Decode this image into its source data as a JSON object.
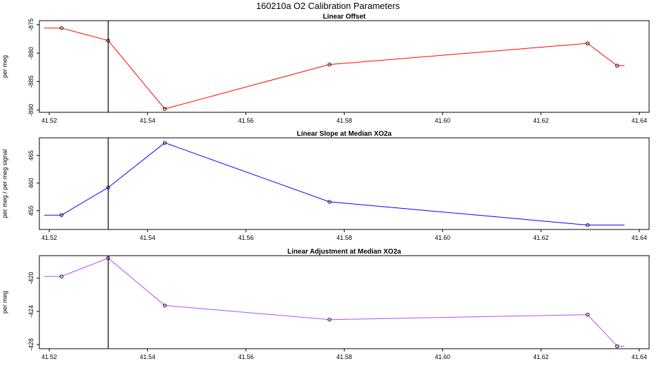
{
  "title": "160210a   O2 Calibration Parameters",
  "chart_data": [
    {
      "type": "line",
      "title": "Linear Offset",
      "ylabel": "per meg",
      "color": "#ff0000",
      "xlim": [
        41.518,
        41.642
      ],
      "ylim": [
        -890.4,
        -874.3
      ],
      "x_ticks": [
        41.52,
        41.54,
        41.56,
        41.58,
        41.6,
        41.62,
        41.64
      ],
      "x_tick_labels": [
        "41.52",
        "41.54",
        "41.56",
        "41.58",
        "41.60",
        "41.62",
        "41.64"
      ],
      "y_ticks": [
        -875,
        -880,
        -885,
        -890
      ],
      "y_tick_labels": [
        "-875",
        "-880",
        "-885",
        "-890"
      ],
      "vertical_line_x": 41.532,
      "x": [
        41.519,
        41.5225,
        41.532,
        41.5435,
        41.577,
        41.6295,
        41.6355,
        41.637
      ],
      "y": [
        -875.6,
        -875.6,
        -877.8,
        -889.8,
        -882.0,
        -878.3,
        -882.2,
        -882.2
      ],
      "marked": [
        false,
        true,
        true,
        true,
        true,
        true,
        true,
        false
      ]
    },
    {
      "type": "line",
      "title": "Linear Slope at Median XO2a",
      "ylabel": "per meg / per meg signal",
      "color": "#0000ff",
      "xlim": [
        41.518,
        41.642
      ],
      "ylim": [
        451.6,
        468.2
      ],
      "x_ticks": [
        41.52,
        41.54,
        41.56,
        41.58,
        41.6,
        41.62,
        41.64
      ],
      "x_tick_labels": [
        "41.52",
        "41.54",
        "41.56",
        "41.58",
        "41.60",
        "41.62",
        "41.64"
      ],
      "y_ticks": [
        455,
        460,
        465
      ],
      "y_tick_labels": [
        "455",
        "460",
        "465"
      ],
      "vertical_line_x": 41.532,
      "x": [
        41.519,
        41.5225,
        41.532,
        41.5435,
        41.577,
        41.6295,
        41.637
      ],
      "y": [
        454.2,
        454.2,
        459.2,
        467.3,
        456.6,
        452.4,
        452.4
      ],
      "marked": [
        false,
        true,
        true,
        true,
        true,
        true,
        false
      ]
    },
    {
      "type": "line",
      "title": "Linear Adjustment at Median XO2a",
      "ylabel": "per meg",
      "color": "#b04bff",
      "xlim": [
        41.518,
        41.642
      ],
      "ylim": [
        -428.5,
        -417.3
      ],
      "x_ticks": [
        41.52,
        41.54,
        41.56,
        41.58,
        41.6,
        41.62,
        41.64
      ],
      "x_tick_labels": [
        "41.52",
        "41.54",
        "41.56",
        "41.58",
        "41.60",
        "41.62",
        "41.64"
      ],
      "y_ticks": [
        -420,
        -424,
        -428
      ],
      "y_tick_labels": [
        "-420",
        "-424",
        "-428"
      ],
      "vertical_line_x": 41.532,
      "x": [
        41.519,
        41.5225,
        41.532,
        41.5435,
        41.577,
        41.6295,
        41.6355,
        41.637
      ],
      "y": [
        -419.8,
        -419.8,
        -417.6,
        -423.3,
        -425.0,
        -424.4,
        -428.2,
        -428.2
      ],
      "marked": [
        false,
        true,
        true,
        true,
        true,
        true,
        true,
        false
      ]
    }
  ]
}
